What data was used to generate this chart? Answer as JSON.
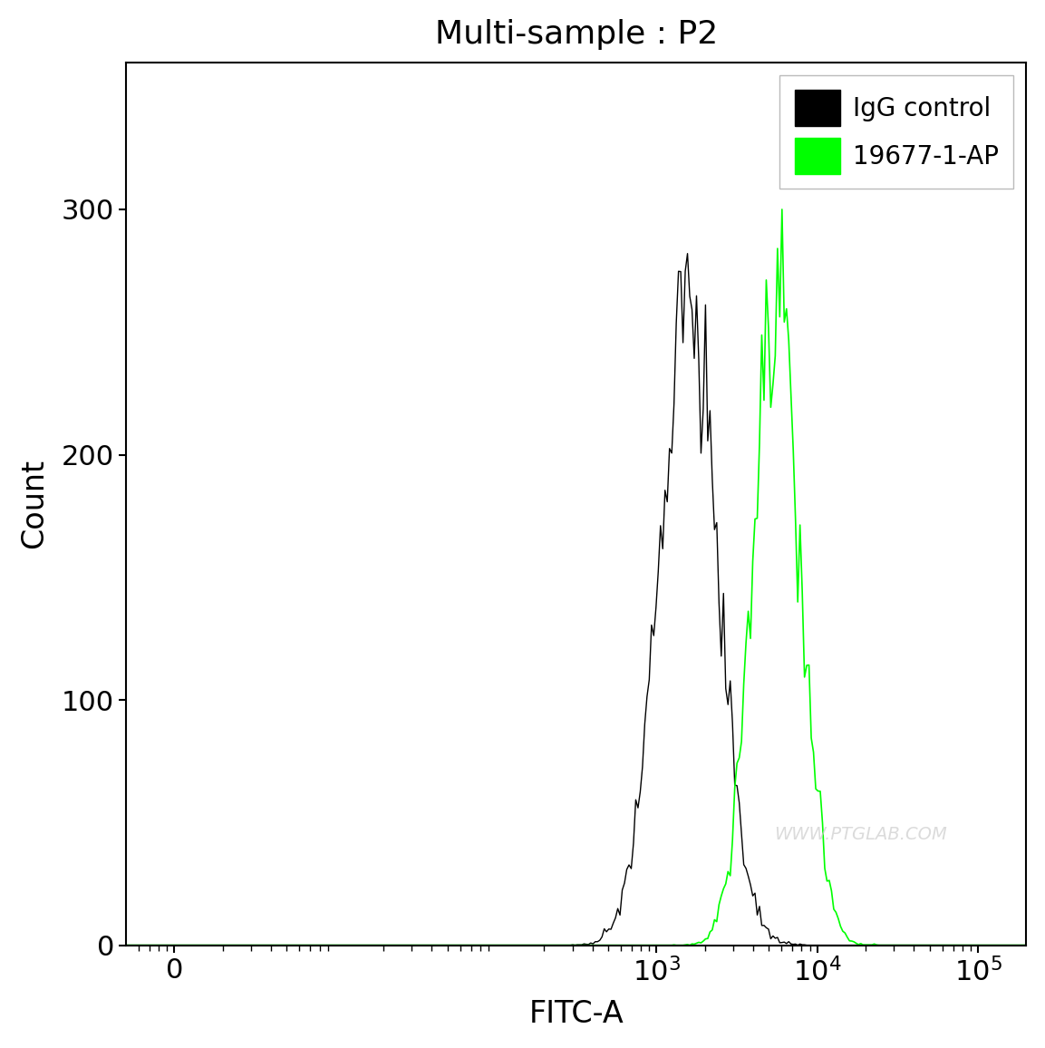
{
  "title": "Multi-sample : P2",
  "xlabel": "FITC-A",
  "ylabel": "Count",
  "xlim_log": [
    -0.3,
    5.3
  ],
  "ylim": [
    0,
    360
  ],
  "yticks": [
    0,
    100,
    200,
    300
  ],
  "bg_color": "#ffffff",
  "border_color": "#000000",
  "black_peak_log": 3.2,
  "black_sigma_log": 0.18,
  "green_peak_log": 3.75,
  "green_sigma_log": 0.15,
  "black_peak_height": 282,
  "green_peak_height": 300,
  "black_color": "#000000",
  "green_color": "#00ff00",
  "watermark": "WWW.PTGLAB.COM",
  "legend_labels": [
    "IgG control",
    "19677-1-AP"
  ],
  "legend_colors": [
    "#000000",
    "#00ff00"
  ]
}
